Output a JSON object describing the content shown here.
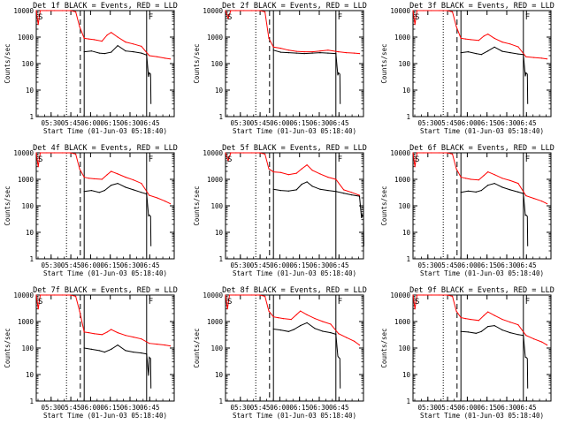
{
  "figure": {
    "background": "#ffffff",
    "black_color": "#000000",
    "red_color": "#ff0000"
  },
  "shared": {
    "ylabel": "Counts/sec",
    "xlabel": "Start Time (01-Jun-03 05:18:40)",
    "x_tick_labels": [
      "05:30",
      "05:45",
      "06:00",
      "06:15",
      "06:30",
      "06:45"
    ],
    "y_tick_labels": [
      "1",
      "10",
      "100",
      "1000",
      "10000"
    ],
    "corner_mark": "S",
    "end_mark": "F",
    "ylim": [
      1,
      10000
    ],
    "xlim_minutes_after_start": [
      0,
      105
    ],
    "x_ticks_minutes": [
      11.33,
      26.33,
      41.33,
      56.33,
      71.33,
      86.33
    ],
    "markers_minutes": {
      "dotted": 23,
      "dashed": 33.5,
      "solid_a": 36.5,
      "solid_b": 84
    }
  },
  "chart_data": [
    {
      "type": "line",
      "title": "Det 1f BLACK = Events, RED = LLD",
      "ylabel": "Counts/sec",
      "xlabel": "Start Time (01-Jun-03 05:18:40)",
      "series": [
        {
          "name": "Events",
          "color": "black",
          "x": [
            36.5,
            42,
            48,
            52,
            57,
            62,
            68,
            74,
            80,
            84
          ],
          "values": [
            280,
            300,
            250,
            240,
            270,
            480,
            300,
            280,
            250,
            210
          ]
        },
        {
          "name": "LLD",
          "color": "red",
          "x": [
            0,
            1.5,
            3,
            8,
            14,
            20,
            26,
            30,
            33,
            36.5,
            40,
            44,
            50,
            54,
            57,
            62,
            68,
            74,
            80,
            86,
            92,
            98,
            102
          ],
          "values": [
            10000,
            3000,
            10000,
            10000,
            10000,
            10000,
            10000,
            9000,
            2500,
            900,
            850,
            800,
            700,
            1200,
            1500,
            1000,
            650,
            550,
            450,
            200,
            180,
            160,
            150
          ]
        }
      ]
    },
    {
      "type": "line",
      "title": "Det 2f BLACK = Events, RED = LLD",
      "ylabel": "Counts/sec",
      "xlabel": "Start Time (01-Jun-03 05:18:40)",
      "series": [
        {
          "name": "Events",
          "color": "black",
          "x": [
            36.5,
            42,
            48,
            54,
            60,
            66,
            72,
            78,
            84
          ],
          "values": [
            320,
            270,
            260,
            250,
            240,
            250,
            260,
            250,
            240
          ]
        },
        {
          "name": "LLD",
          "color": "red",
          "x": [
            0,
            2,
            4,
            8,
            14,
            20,
            26,
            30,
            33,
            36.5,
            42,
            48,
            54,
            60,
            66,
            72,
            78,
            86,
            92,
            98,
            102
          ],
          "values": [
            10000,
            5000,
            10000,
            10000,
            10000,
            10000,
            10000,
            9000,
            900,
            420,
            380,
            320,
            290,
            280,
            280,
            300,
            320,
            280,
            260,
            250,
            240
          ]
        }
      ]
    },
    {
      "type": "line",
      "title": "Det 3f BLACK = Events, RED = LLD",
      "ylabel": "Counts/sec",
      "xlabel": "Start Time (01-Jun-03 05:18:40)",
      "series": [
        {
          "name": "Events",
          "color": "black",
          "x": [
            36.5,
            42,
            48,
            52,
            57,
            62,
            68,
            74,
            80,
            84
          ],
          "values": [
            260,
            280,
            240,
            220,
            300,
            420,
            290,
            260,
            230,
            220
          ]
        },
        {
          "name": "LLD",
          "color": "red",
          "x": [
            0,
            1.5,
            3,
            8,
            14,
            20,
            26,
            30,
            33,
            36.5,
            40,
            44,
            50,
            54,
            57,
            62,
            68,
            74,
            80,
            86,
            92,
            98,
            102
          ],
          "values": [
            10000,
            3000,
            10000,
            10000,
            10000,
            10000,
            10000,
            9000,
            2500,
            900,
            850,
            800,
            750,
            1100,
            1300,
            900,
            650,
            550,
            430,
            180,
            170,
            160,
            150
          ]
        }
      ]
    },
    {
      "type": "line",
      "title": "Det 4f BLACK = Events, RED = LLD",
      "ylabel": "Counts/sec",
      "xlabel": "Start Time (01-Jun-03 05:18:40)",
      "series": [
        {
          "name": "Events",
          "color": "black",
          "x": [
            36.5,
            42,
            48,
            52,
            57,
            62,
            68,
            74,
            80,
            84
          ],
          "values": [
            350,
            380,
            320,
            380,
            600,
            700,
            500,
            400,
            320,
            280
          ]
        },
        {
          "name": "LLD",
          "color": "red",
          "x": [
            0,
            1.5,
            3,
            8,
            14,
            20,
            26,
            30,
            33,
            36.5,
            40,
            44,
            50,
            54,
            57,
            62,
            68,
            74,
            80,
            86,
            92,
            98,
            102
          ],
          "values": [
            10000,
            3000,
            10000,
            10000,
            10000,
            10000,
            10000,
            9000,
            2500,
            1200,
            1100,
            1050,
            1000,
            1500,
            2000,
            1600,
            1200,
            950,
            700,
            250,
            200,
            150,
            120
          ]
        }
      ]
    },
    {
      "type": "line",
      "title": "Det 5f BLACK = Events, RED = LLD",
      "ylabel": "Counts/sec",
      "xlabel": "Start Time (01-Jun-03 05:18:40)",
      "series": [
        {
          "name": "Events",
          "color": "black",
          "x": [
            36.5,
            42,
            48,
            54,
            58,
            62,
            66,
            72,
            78,
            84,
            90,
            96,
            102
          ],
          "values": [
            420,
            380,
            360,
            400,
            650,
            800,
            550,
            420,
            380,
            350,
            300,
            260,
            230
          ]
        },
        {
          "name": "LLD",
          "color": "red",
          "x": [
            0,
            2,
            4,
            8,
            14,
            20,
            26,
            30,
            33,
            36.5,
            42,
            48,
            54,
            58,
            62,
            66,
            72,
            78,
            84,
            90,
            96,
            102
          ],
          "values": [
            10000,
            5000,
            10000,
            10000,
            10000,
            10000,
            10000,
            9000,
            2500,
            1900,
            1800,
            1500,
            1700,
            2500,
            3500,
            2200,
            1600,
            1200,
            1000,
            400,
            320,
            250
          ]
        }
      ]
    },
    {
      "type": "line",
      "title": "Det 6f BLACK = Events, RED = LLD",
      "ylabel": "Counts/sec",
      "xlabel": "Start Time (01-Jun-03 05:18:40)",
      "series": [
        {
          "name": "Events",
          "color": "black",
          "x": [
            36.5,
            42,
            48,
            52,
            57,
            62,
            68,
            74,
            80,
            84
          ],
          "values": [
            320,
            360,
            330,
            380,
            600,
            700,
            500,
            400,
            330,
            290
          ]
        },
        {
          "name": "LLD",
          "color": "red",
          "x": [
            0,
            1.5,
            3,
            8,
            14,
            20,
            26,
            30,
            33,
            36.5,
            40,
            44,
            50,
            54,
            57,
            62,
            68,
            74,
            80,
            86,
            92,
            98,
            102
          ],
          "values": [
            10000,
            3000,
            10000,
            10000,
            10000,
            10000,
            10000,
            9000,
            2500,
            1200,
            1100,
            1000,
            950,
            1400,
            1900,
            1500,
            1100,
            900,
            700,
            240,
            190,
            150,
            120
          ]
        }
      ]
    },
    {
      "type": "line",
      "title": "Det 7f BLACK = Events, RED = LLD",
      "ylabel": "Counts/sec",
      "xlabel": "Start Time (01-Jun-03 05:18:40)",
      "series": [
        {
          "name": "Events",
          "color": "black",
          "x": [
            36.5,
            42,
            48,
            52,
            57,
            62,
            68,
            74,
            80,
            84
          ],
          "values": [
            100,
            90,
            80,
            70,
            90,
            130,
            80,
            70,
            65,
            60
          ]
        },
        {
          "name": "LLD",
          "color": "red",
          "x": [
            0,
            1.5,
            3,
            8,
            14,
            20,
            26,
            30,
            33,
            36.5,
            40,
            44,
            50,
            54,
            57,
            62,
            68,
            74,
            80,
            86,
            92,
            98,
            102
          ],
          "values": [
            10000,
            3000,
            10000,
            10000,
            10000,
            10000,
            10000,
            9000,
            2500,
            400,
            380,
            350,
            320,
            400,
            500,
            380,
            300,
            260,
            220,
            150,
            140,
            130,
            120
          ]
        }
      ]
    },
    {
      "type": "line",
      "title": "Det 8f BLACK = Events, RED = LLD",
      "ylabel": "Counts/sec",
      "xlabel": "Start Time (01-Jun-03 05:18:40)",
      "series": [
        {
          "name": "Events",
          "color": "black",
          "x": [
            36.5,
            42,
            48,
            52,
            57,
            62,
            68,
            74,
            80,
            84
          ],
          "values": [
            520,
            480,
            420,
            500,
            700,
            900,
            550,
            430,
            380,
            330
          ]
        },
        {
          "name": "LLD",
          "color": "red",
          "x": [
            0,
            1.5,
            3,
            8,
            14,
            20,
            26,
            30,
            33,
            36.5,
            40,
            44,
            50,
            54,
            57,
            62,
            68,
            74,
            80,
            86,
            92,
            98,
            102
          ],
          "values": [
            10000,
            3000,
            10000,
            10000,
            10000,
            10000,
            10000,
            9000,
            2500,
            1500,
            1400,
            1300,
            1200,
            1800,
            2500,
            1800,
            1300,
            1000,
            800,
            350,
            250,
            180,
            130
          ]
        }
      ]
    },
    {
      "type": "line",
      "title": "Det 9f BLACK = Events, RED = LLD",
      "ylabel": "Counts/sec",
      "xlabel": "Start Time (01-Jun-03 05:18:40)",
      "series": [
        {
          "name": "Events",
          "color": "black",
          "x": [
            36.5,
            42,
            48,
            52,
            57,
            62,
            68,
            74,
            80,
            84
          ],
          "values": [
            420,
            400,
            360,
            420,
            650,
            700,
            480,
            380,
            320,
            300
          ]
        },
        {
          "name": "LLD",
          "color": "red",
          "x": [
            0,
            1.5,
            3,
            8,
            14,
            20,
            26,
            30,
            33,
            36.5,
            40,
            44,
            50,
            54,
            57,
            62,
            68,
            74,
            80,
            86,
            92,
            98,
            102
          ],
          "values": [
            10000,
            3000,
            10000,
            10000,
            10000,
            10000,
            10000,
            9000,
            2500,
            1400,
            1300,
            1200,
            1100,
            1700,
            2300,
            1700,
            1200,
            950,
            750,
            300,
            220,
            170,
            130
          ]
        }
      ]
    }
  ]
}
